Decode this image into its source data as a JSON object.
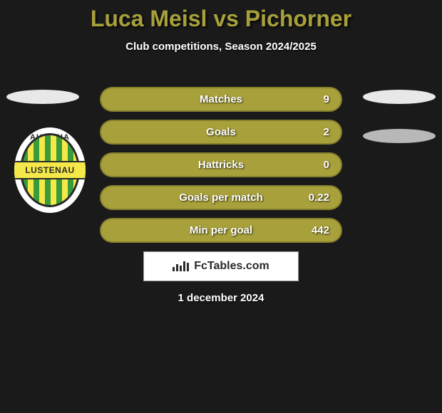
{
  "title": {
    "text": "Luca Meisl vs Pichorner",
    "fontsize": 32,
    "color": "#a8a03a"
  },
  "subtitle": "Club competitions, Season 2024/2025",
  "badge": {
    "top_text": "AUSTRIA",
    "band_text": "LUSTENAU"
  },
  "bars": {
    "fill_color": "#a8a03a",
    "items": [
      {
        "label": "Matches",
        "value": "9"
      },
      {
        "label": "Goals",
        "value": "2"
      },
      {
        "label": "Hattricks",
        "value": "0"
      },
      {
        "label": "Goals per match",
        "value": "0.22"
      },
      {
        "label": "Min per goal",
        "value": "442"
      }
    ]
  },
  "footer_brand": "FcTables.com",
  "date": "1 december 2024",
  "background_color": "#1a1a1a"
}
